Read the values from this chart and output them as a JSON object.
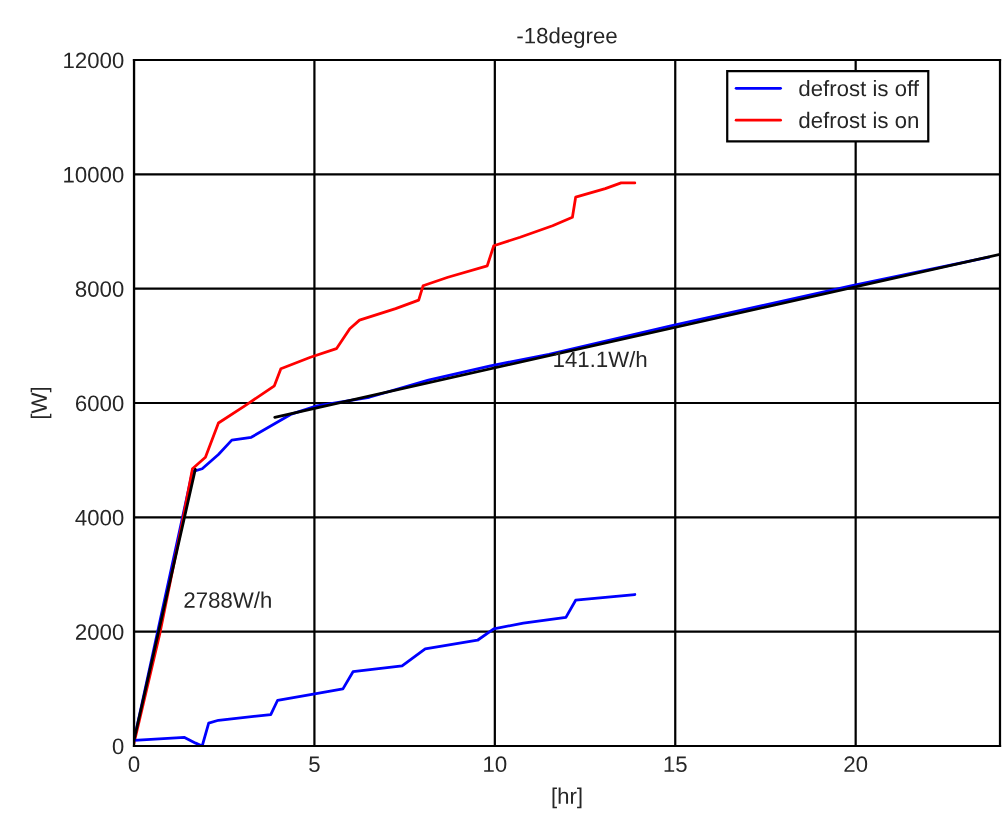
{
  "chart_data": {
    "type": "line",
    "title": "-18degree",
    "xlabel": "[hr]",
    "ylabel": "[W]",
    "xlim": [
      0,
      24
    ],
    "ylim": [
      0,
      12000
    ],
    "xticks": [
      0,
      5,
      10,
      15,
      20
    ],
    "yticks": [
      0,
      2000,
      4000,
      6000,
      8000,
      10000,
      12000
    ],
    "grid": true,
    "legend": "top right",
    "series": [
      {
        "name": "defrost is off",
        "color": "#0000ff",
        "x": [
          0,
          0.71,
          1.35,
          1.62,
          1.89,
          2.34,
          2.71,
          3.25,
          4.34,
          5.07,
          6.52,
          8.16,
          9.88,
          11.5,
          14.88,
          19.87,
          23.69
        ],
        "values": [
          100,
          null,
          null,
          4800,
          4850,
          5100,
          5350,
          5400,
          5800,
          5950,
          6100,
          6400,
          6650,
          6850,
          7350,
          8050,
          8550
        ]
      },
      {
        "name": "defrost is on",
        "color": "#ff0000",
        "x": [
          0,
          0.71,
          1.35,
          1.62,
          1.98,
          2.34,
          3.07,
          3.89,
          4.07,
          4.89,
          5.61,
          5.98,
          6.25,
          7.25,
          7.89,
          8.01,
          8.7,
          9.79,
          9.97,
          10.7,
          11.6,
          12.15,
          12.24,
          13.06,
          13.5,
          13.88
        ],
        "values": [
          50,
          1950,
          3950,
          4850,
          5050,
          5650,
          5950,
          6300,
          6600,
          6800,
          6950,
          7300,
          7450,
          7650,
          7800,
          8050,
          8200,
          8400,
          8750,
          8900,
          9100,
          9250,
          9600,
          9750,
          9850,
          9850
        ]
      },
      {
        "color": "#0000ff",
        "x": [
          0,
          1.4,
          1.71,
          1.89,
          2.07,
          2.34,
          3.79,
          3.98,
          4.89,
          5.79,
          6.07,
          7.43,
          8.07,
          9.52,
          9.97,
          10.79,
          11.97,
          12.24,
          13.88
        ],
        "values": [
          100,
          150,
          50,
          0,
          400,
          450,
          550,
          800,
          900,
          1000,
          1300,
          1400,
          1700,
          1850,
          2050,
          2150,
          2250,
          2550,
          2650
        ]
      },
      {
        "color": "#000000",
        "x": [
          0,
          1.7
        ],
        "values": [
          100,
          4840
        ]
      },
      {
        "color": "#000000",
        "x": [
          3.9,
          24
        ],
        "values": [
          5750,
          8600
        ]
      }
    ],
    "annotations": [
      "2788W/h",
      {
        "text": "141.1W/h",
        "x": 11.6,
        "y": 6730
      }
    ]
  }
}
